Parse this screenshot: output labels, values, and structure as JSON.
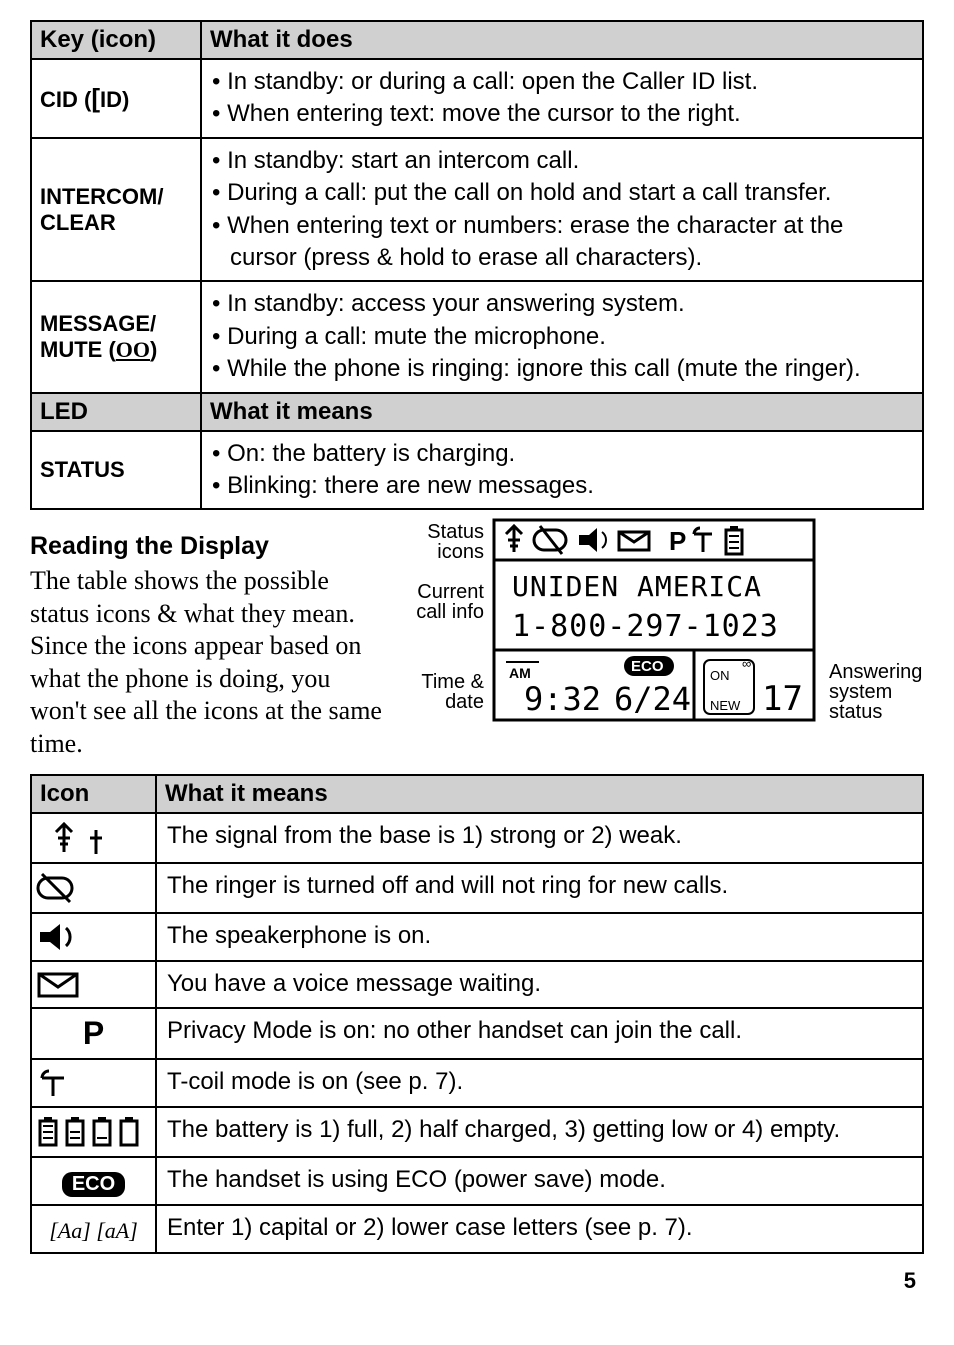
{
  "table1": {
    "header": {
      "col1": "Key (icon)",
      "col2": "What it does"
    },
    "rows": [
      {
        "key_html": "CID (<span class='cid-icon'>[</span>ID)",
        "bullets": [
          "In standby: or during a call: open the Caller ID list.",
          "When entering text: move the cursor to the right."
        ]
      },
      {
        "key_html": "INTERCOM/<br>CLEAR",
        "bullets": [
          "In standby: start an intercom call.",
          "During a call: put the call on hold and start a call transfer.",
          "When entering text or numbers: erase the character at the cursor (press & hold to erase all characters)."
        ]
      },
      {
        "key_html": "MESSAGE/<br>MUTE (<span style='font-family:serif; text-decoration:underline;'>OO</span>)",
        "bullets": [
          "In standby: access your answering system.",
          "During a call: mute the microphone.",
          "While the phone is ringing: ignore this call (mute the ringer)."
        ]
      }
    ],
    "header2": {
      "col1": "LED",
      "col2": "What it means"
    },
    "status_row": {
      "key": "STATUS",
      "bullets": [
        "On: the battery is charging.",
        "Blinking: there are new messages."
      ]
    }
  },
  "reading": {
    "title": "Reading the Display",
    "intro": "The table shows the possible status icons & what they mean. Since the icons appear based on what the phone is doing, you won't see all the icons at the same time."
  },
  "diagram": {
    "labels": {
      "status": "Status icons",
      "current": "Current call info",
      "time": "Time & date",
      "answering": "Answering system status"
    },
    "lcd": {
      "line1_name": "UNIDEN AMERICA",
      "line1_num": "1-800-297-1023",
      "time": "9:32",
      "am": "AM",
      "date": "6/24",
      "eco": "ECO",
      "on": "ON",
      "new": "NEW",
      "msgcount": "17"
    }
  },
  "table2": {
    "header": {
      "col1": "Icon",
      "col2": "What it means"
    },
    "rows": [
      {
        "icon_type": "signal",
        "text": "The signal from the base is 1) strong or 2) weak."
      },
      {
        "icon_type": "ringer_off",
        "text": "The ringer is turned off and will not ring for new calls."
      },
      {
        "icon_type": "speaker",
        "text": "The speakerphone is on."
      },
      {
        "icon_type": "envelope",
        "text": "You have a voice message waiting."
      },
      {
        "icon_type": "privacy",
        "text": "Privacy Mode is on: no other handset can join the call."
      },
      {
        "icon_type": "tcoil",
        "text": "T-coil mode is on (see p. 7)."
      },
      {
        "icon_type": "battery",
        "text": "The battery is 1) full, 2) half charged, 3) getting low or 4) empty."
      },
      {
        "icon_type": "eco",
        "text": "The handset is using ECO (power save) mode."
      },
      {
        "icon_type": "aa",
        "text": "Enter 1) capital or 2) lower case letters (see p. 7)."
      }
    ]
  },
  "page_number": "5"
}
